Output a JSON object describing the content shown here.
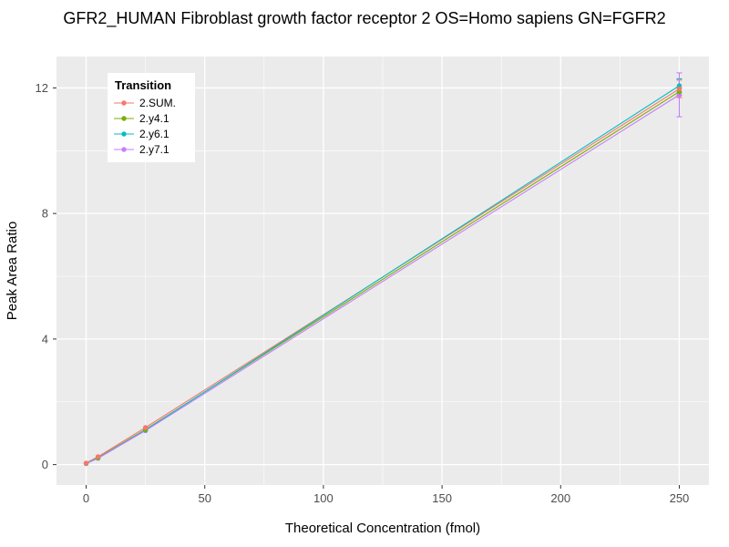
{
  "chart_data": {
    "type": "line",
    "title": "GFR2_HUMAN Fibroblast growth factor receptor 2 OS=Homo sapiens GN=FGFR2",
    "xlabel": "Theoretical Concentration (fmol)",
    "ylabel": "Peak Area Ratio",
    "legend_title": "Transition",
    "legend_position": "top-left-inside",
    "grid": true,
    "panel_bg": "#EBEBEB",
    "grid_color": "#FFFFFF",
    "tick_label_color": "#4D4D4D",
    "axis_title_color": "#000000",
    "x": [
      0,
      5,
      25,
      250
    ],
    "series": [
      {
        "name": "2.SUM.",
        "color": "#F8766D",
        "values": [
          0.05,
          0.25,
          1.18,
          11.97
        ],
        "yerr": [
          0,
          0,
          0.05,
          0.28
        ]
      },
      {
        "name": "2.y4.1",
        "color": "#7CAE00",
        "values": [
          0.04,
          0.22,
          1.12,
          11.88
        ],
        "yerr": [
          0,
          0,
          0.04,
          0.12
        ]
      },
      {
        "name": "2.y6.1",
        "color": "#00BFC4",
        "values": [
          0.04,
          0.21,
          1.1,
          12.07
        ],
        "yerr": [
          0,
          0,
          0.04,
          0.22
        ]
      },
      {
        "name": "2.y7.1",
        "color": "#C77CFF",
        "values": [
          0.03,
          0.2,
          1.08,
          11.78
        ],
        "yerr": [
          0,
          0,
          0.04,
          0.7
        ]
      }
    ],
    "xlim": [
      -12.5,
      262.5
    ],
    "ylim": [
      -0.65,
      13.0
    ],
    "x_ticks": [
      0,
      50,
      100,
      150,
      200,
      250
    ],
    "x_minor_ticks": [
      25,
      75,
      125,
      175,
      225
    ],
    "y_ticks": [
      0,
      4,
      8,
      12
    ],
    "y_minor_ticks": [
      2,
      6,
      10
    ]
  }
}
